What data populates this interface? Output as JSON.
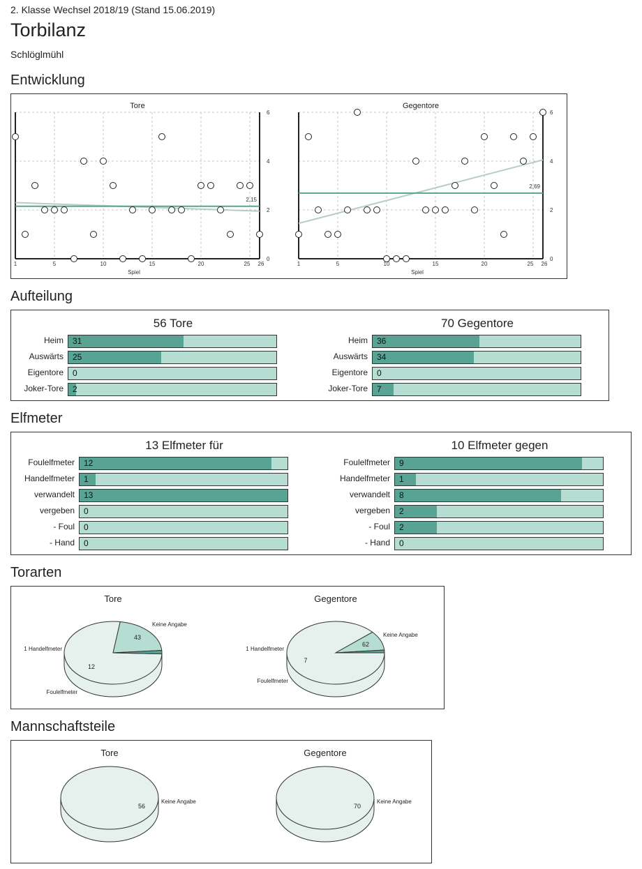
{
  "header": {
    "league": "2. Klasse Wechsel 2018/19 (Stand 15.06.2019)",
    "title": "Torbilanz",
    "team": "Schlöglmühl"
  },
  "sections": {
    "entwicklung": "Entwicklung",
    "aufteilung": "Aufteilung",
    "elfmeter": "Elfmeter",
    "torarten": "Torarten",
    "mannschaftsteile": "Mannschaftsteile"
  },
  "colors": {
    "dark": "#58a394",
    "light": "#b6ddd2",
    "pale": "#e6f1ed",
    "trend": "#b8ccc8"
  },
  "chart_data": [
    {
      "id": "tore_entwicklung",
      "type": "scatter",
      "title": "Tore",
      "xlabel": "Spiel",
      "xlim": [
        1,
        26
      ],
      "ylim": [
        0,
        6
      ],
      "xticks": [
        1,
        5,
        10,
        15,
        20,
        25,
        26
      ],
      "yticks": [
        0,
        2,
        4,
        6
      ],
      "grid": true,
      "x": [
        1,
        2,
        3,
        4,
        5,
        6,
        7,
        8,
        9,
        10,
        11,
        12,
        13,
        14,
        15,
        16,
        17,
        18,
        19,
        20,
        21,
        22,
        23,
        24,
        25,
        26
      ],
      "y": [
        5,
        1,
        3,
        2,
        2,
        2,
        0,
        4,
        1,
        4,
        3,
        0,
        2,
        0,
        2,
        5,
        2,
        2,
        0,
        3,
        3,
        2,
        1,
        3,
        3,
        1
      ],
      "average": 2.15,
      "average_label": "2,15",
      "trend": [
        2.3,
        1.95
      ]
    },
    {
      "id": "gegentore_entwicklung",
      "type": "scatter",
      "title": "Gegentore",
      "xlabel": "Spiel",
      "xlim": [
        1,
        26
      ],
      "ylim": [
        0,
        6
      ],
      "xticks": [
        1,
        5,
        10,
        15,
        20,
        25,
        26
      ],
      "yticks": [
        0,
        2,
        4,
        6
      ],
      "grid": true,
      "x": [
        1,
        2,
        3,
        4,
        5,
        6,
        7,
        8,
        9,
        10,
        11,
        12,
        13,
        14,
        15,
        16,
        17,
        18,
        19,
        20,
        21,
        22,
        23,
        24,
        25,
        26
      ],
      "y": [
        1,
        5,
        2,
        1,
        1,
        2,
        6,
        2,
        2,
        0,
        0,
        0,
        4,
        2,
        2,
        2,
        3,
        4,
        2,
        5,
        3,
        1,
        5,
        4,
        5,
        6
      ],
      "average": 2.69,
      "average_label": "2,69",
      "trend": [
        1.45,
        4.05
      ]
    },
    {
      "id": "aufteilung_tore",
      "type": "bar",
      "title": "56 Tore",
      "max": 56,
      "categories": [
        "Heim",
        "Auswärts",
        "Eigentore",
        "Joker-Tore"
      ],
      "values": [
        31,
        25,
        0,
        2
      ]
    },
    {
      "id": "aufteilung_gegentore",
      "type": "bar",
      "title": "70 Gegentore",
      "max": 70,
      "categories": [
        "Heim",
        "Auswärts",
        "Eigentore",
        "Joker-Tore"
      ],
      "values": [
        36,
        34,
        0,
        7
      ]
    },
    {
      "id": "elfmeter_fuer",
      "type": "bar",
      "title": "13 Elfmeter für",
      "max": 13,
      "categories": [
        "Foulelfmeter",
        "Handelfmeter",
        "verwandelt",
        "vergeben",
        "- Foul",
        "- Hand"
      ],
      "values": [
        12,
        1,
        13,
        0,
        0,
        0
      ]
    },
    {
      "id": "elfmeter_gegen",
      "type": "bar",
      "title": "10 Elfmeter gegen",
      "max": 10,
      "categories": [
        "Foulelfmeter",
        "Handelfmeter",
        "verwandelt",
        "vergeben",
        "- Foul",
        "- Hand"
      ],
      "values": [
        9,
        1,
        8,
        2,
        2,
        0
      ]
    },
    {
      "id": "torarten_tore",
      "type": "pie",
      "title": "Tore",
      "slices": [
        {
          "label": "Keine Angabe",
          "value": 43,
          "value_label": "43"
        },
        {
          "label": "Foulelfmeter",
          "value": 12,
          "value_label": "12"
        },
        {
          "label": "1 Handelfmeter",
          "value": 1,
          "value_label": ""
        }
      ]
    },
    {
      "id": "torarten_gegentore",
      "type": "pie",
      "title": "Gegentore",
      "slices": [
        {
          "label": "Keine Angabe",
          "value": 62,
          "value_label": "62"
        },
        {
          "label": "Foulelfmeter",
          "value": 7,
          "value_label": "7"
        },
        {
          "label": "1 Handelfmeter",
          "value": 1,
          "value_label": ""
        }
      ]
    },
    {
      "id": "mannschaftsteile_tore",
      "type": "pie",
      "title": "Tore",
      "slices": [
        {
          "label": "Keine Angabe",
          "value": 56,
          "value_label": "56"
        }
      ]
    },
    {
      "id": "mannschaftsteile_gegentore",
      "type": "pie",
      "title": "Gegentore",
      "slices": [
        {
          "label": "Keine Angabe",
          "value": 70,
          "value_label": "70"
        }
      ]
    }
  ]
}
